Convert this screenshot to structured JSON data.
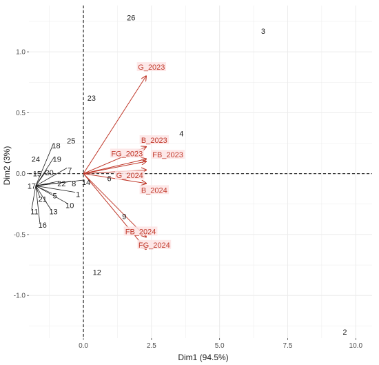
{
  "chart_data": {
    "type": "scatter",
    "subtype": "pca-biplot",
    "xlabel": "Dim1 (94.5%)",
    "ylabel": "Dim2 (3%)",
    "xlim": [
      -2.0,
      10.6
    ],
    "ylim": [
      -1.35,
      1.38
    ],
    "xticks": [
      0.0,
      2.5,
      5.0,
      7.5,
      10.0
    ],
    "xtick_labels": [
      "0.0",
      "2.5",
      "5.0",
      "7.5",
      "10.0"
    ],
    "yticks": [
      -1.0,
      -0.5,
      0.0,
      0.5,
      1.0
    ],
    "ytick_labels": [
      "-1.0",
      "-0.5",
      "0.0",
      "0.5",
      "1.0"
    ],
    "grid": true,
    "reference_lines": {
      "x": 0,
      "y": 0,
      "style": "dashed"
    },
    "individuals": [
      {
        "label": "1",
        "x": -0.2,
        "y": -0.17
      },
      {
        "label": "2",
        "x": 9.6,
        "y": -1.3
      },
      {
        "label": "3",
        "x": 6.6,
        "y": 1.17
      },
      {
        "label": "4",
        "x": 3.6,
        "y": 0.33
      },
      {
        "label": "5",
        "x": -1.05,
        "y": -0.18
      },
      {
        "label": "6",
        "x": 0.95,
        "y": -0.04
      },
      {
        "label": "7",
        "x": -0.5,
        "y": 0.03
      },
      {
        "label": "8",
        "x": -0.35,
        "y": -0.08
      },
      {
        "label": "9",
        "x": 1.5,
        "y": -0.35
      },
      {
        "label": "10",
        "x": -0.5,
        "y": -0.26
      },
      {
        "label": "11",
        "x": -1.8,
        "y": -0.31
      },
      {
        "label": "12",
        "x": 0.5,
        "y": -0.81
      },
      {
        "label": "13",
        "x": -1.1,
        "y": -0.31
      },
      {
        "label": "14",
        "x": 0.1,
        "y": -0.07
      },
      {
        "label": "15",
        "x": -1.7,
        "y": 0.0
      },
      {
        "label": "16",
        "x": -1.5,
        "y": -0.42
      },
      {
        "label": "17",
        "x": -1.9,
        "y": -0.1
      },
      {
        "label": "18",
        "x": -1.0,
        "y": 0.23
      },
      {
        "label": "19",
        "x": -0.97,
        "y": 0.12
      },
      {
        "label": "20",
        "x": -1.25,
        "y": 0.01
      },
      {
        "label": "21",
        "x": -1.5,
        "y": -0.21
      },
      {
        "label": "22",
        "x": -0.8,
        "y": -0.08
      },
      {
        "label": "23",
        "x": 0.3,
        "y": 0.62
      },
      {
        "label": "24",
        "x": -1.75,
        "y": 0.12
      },
      {
        "label": "25",
        "x": -0.45,
        "y": 0.27
      },
      {
        "label": "26",
        "x": 1.75,
        "y": 1.28
      }
    ],
    "variables": [
      {
        "name": "G_2023",
        "x": 2.3,
        "y": 0.8
      },
      {
        "name": "B_2023",
        "x": 2.3,
        "y": 0.22
      },
      {
        "name": "FG_2023",
        "x": 2.3,
        "y": 0.12
      },
      {
        "name": "FB_2023",
        "x": 2.3,
        "y": 0.1
      },
      {
        "name": "G_2024",
        "x": 2.3,
        "y": 0.03
      },
      {
        "name": "B_2024",
        "x": 2.3,
        "y": -0.08
      },
      {
        "name": "FB_2024",
        "x": 2.3,
        "y": -0.52
      },
      {
        "name": "FG_2024",
        "x": 2.3,
        "y": -0.62
      }
    ],
    "colors": {
      "variables": "#c0392b",
      "individuals": "#1a1a1a",
      "panel_background": "#ffffff",
      "grid": "#ebebeb",
      "reference": "#333333"
    }
  }
}
